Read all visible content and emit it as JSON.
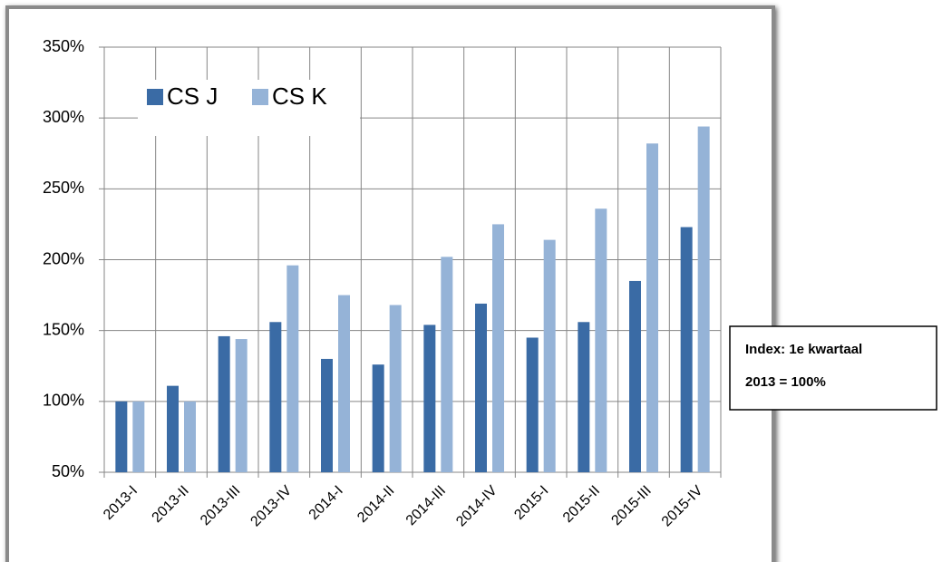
{
  "chart_data": {
    "type": "bar",
    "categories": [
      "2013-I",
      "2013-II",
      "2013-III",
      "2013-IV",
      "2014-I",
      "2014-II",
      "2014-III",
      "2014-IV",
      "2015-I",
      "2015-II",
      "2015-III",
      "2015-IV"
    ],
    "series": [
      {
        "name": "CS J",
        "color": "#3a6ba5",
        "values": [
          100,
          111,
          146,
          156,
          130,
          126,
          154,
          169,
          145,
          156,
          185,
          223
        ]
      },
      {
        "name": "CS K",
        "color": "#95b3d7",
        "values": [
          100,
          100,
          144,
          196,
          175,
          168,
          202,
          225,
          214,
          236,
          282,
          294
        ]
      }
    ],
    "ylim": [
      50,
      350
    ],
    "yticks": [
      {
        "value": 50,
        "label": "50%"
      },
      {
        "value": 100,
        "label": "100%"
      },
      {
        "value": 150,
        "label": "150%"
      },
      {
        "value": 200,
        "label": "200%"
      },
      {
        "value": 250,
        "label": "250%"
      },
      {
        "value": 300,
        "label": "300%"
      },
      {
        "value": 350,
        "label": "350%"
      }
    ],
    "grid": true,
    "legend": "upper left",
    "annotation": [
      "Index: 1e kwartaal",
      "2013 = 100%"
    ]
  }
}
